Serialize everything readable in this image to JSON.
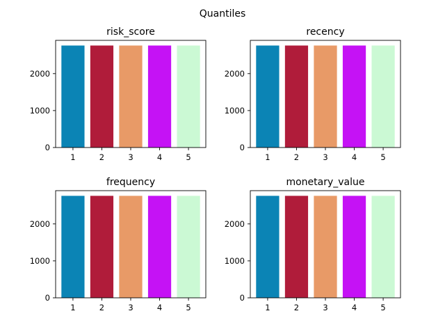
{
  "figure": {
    "suptitle": "Quantiles"
  },
  "chart_data": [
    {
      "type": "bar",
      "title": "risk_score",
      "categories": [
        "1",
        "2",
        "3",
        "4",
        "5"
      ],
      "values": [
        2760,
        2760,
        2760,
        2760,
        2760
      ],
      "colors": [
        "#0b84b5",
        "#b01c3a",
        "#e89a67",
        "#c512f5",
        "#cbf9d4"
      ],
      "ylim": [
        0,
        2900
      ],
      "yticks": [
        0,
        1000,
        2000
      ],
      "grid": false,
      "xlabel": "",
      "ylabel": ""
    },
    {
      "type": "bar",
      "title": "recency",
      "categories": [
        "1",
        "2",
        "3",
        "4",
        "5"
      ],
      "values": [
        2760,
        2760,
        2760,
        2760,
        2760
      ],
      "colors": [
        "#0b84b5",
        "#b01c3a",
        "#e89a67",
        "#c512f5",
        "#cbf9d4"
      ],
      "ylim": [
        0,
        2900
      ],
      "yticks": [
        0,
        1000,
        2000
      ],
      "grid": false,
      "xlabel": "",
      "ylabel": ""
    },
    {
      "type": "bar",
      "title": "frequency",
      "categories": [
        "1",
        "2",
        "3",
        "4",
        "5"
      ],
      "values": [
        2760,
        2760,
        2760,
        2760,
        2760
      ],
      "colors": [
        "#0b84b5",
        "#b01c3a",
        "#e89a67",
        "#c512f5",
        "#cbf9d4"
      ],
      "ylim": [
        0,
        2900
      ],
      "yticks": [
        0,
        1000,
        2000
      ],
      "grid": false,
      "xlabel": "",
      "ylabel": ""
    },
    {
      "type": "bar",
      "title": "monetary_value",
      "categories": [
        "1",
        "2",
        "3",
        "4",
        "5"
      ],
      "values": [
        2760,
        2760,
        2760,
        2760,
        2760
      ],
      "colors": [
        "#0b84b5",
        "#b01c3a",
        "#e89a67",
        "#c512f5",
        "#cbf9d4"
      ],
      "ylim": [
        0,
        2900
      ],
      "yticks": [
        0,
        1000,
        2000
      ],
      "grid": false,
      "xlabel": "",
      "ylabel": ""
    }
  ]
}
